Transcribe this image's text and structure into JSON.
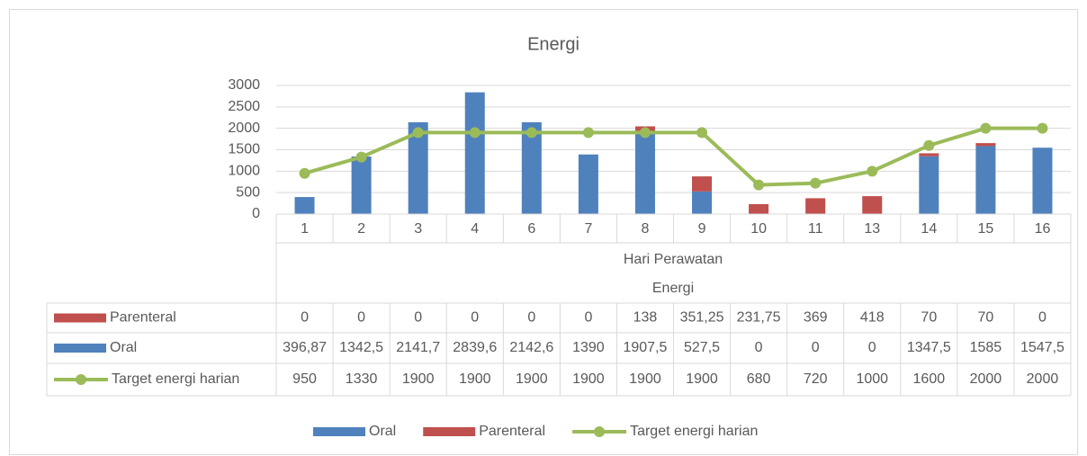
{
  "chart_data": {
    "type": "bar",
    "title": "Energi",
    "categories": [
      "1",
      "2",
      "3",
      "4",
      "6",
      "7",
      "8",
      "9",
      "10",
      "11",
      "13",
      "14",
      "15",
      "16"
    ],
    "x_label": "Hari Perawatan",
    "category_group": "Energi",
    "ylim": [
      0,
      3000
    ],
    "yticks": [
      0,
      500,
      1000,
      1500,
      2000,
      2500,
      3000
    ],
    "grid": true,
    "stacked": true,
    "legend": "bottom",
    "series": [
      {
        "name": "Oral",
        "color": "#4f81bd",
        "values": [
          396.87,
          1342.5,
          2141.7,
          2839.6,
          2142.6,
          1390,
          1907.5,
          527.5,
          0,
          0,
          0,
          1347.5,
          1585,
          1547.5
        ],
        "value_labels": [
          "396,87",
          "1342,5",
          "2141,7",
          "2839,6",
          "2142,6",
          "1390",
          "1907,5",
          "527,5",
          "0",
          "0",
          "0",
          "1347,5",
          "1585",
          "1547,5"
        ]
      },
      {
        "name": "Parenteral",
        "color": "#c0504d",
        "values": [
          0,
          0,
          0,
          0,
          0,
          0,
          138,
          351.25,
          231.75,
          369,
          418,
          70,
          70,
          0
        ],
        "value_labels": [
          "0",
          "0",
          "0",
          "0",
          "0",
          "0",
          "138",
          "351,25",
          "231,75",
          "369",
          "418",
          "70",
          "70",
          "0"
        ]
      },
      {
        "name": "Target energi harian",
        "type": "line",
        "color": "#9bbb59",
        "values": [
          950,
          1330,
          1900,
          1900,
          1900,
          1900,
          1900,
          1900,
          680,
          720,
          1000,
          1600,
          2000,
          2000
        ],
        "value_labels": [
          "950",
          "1330",
          "1900",
          "1900",
          "1900",
          "1900",
          "1900",
          "1900",
          "680",
          "720",
          "1000",
          "1600",
          "2000",
          "2000"
        ]
      }
    ]
  }
}
